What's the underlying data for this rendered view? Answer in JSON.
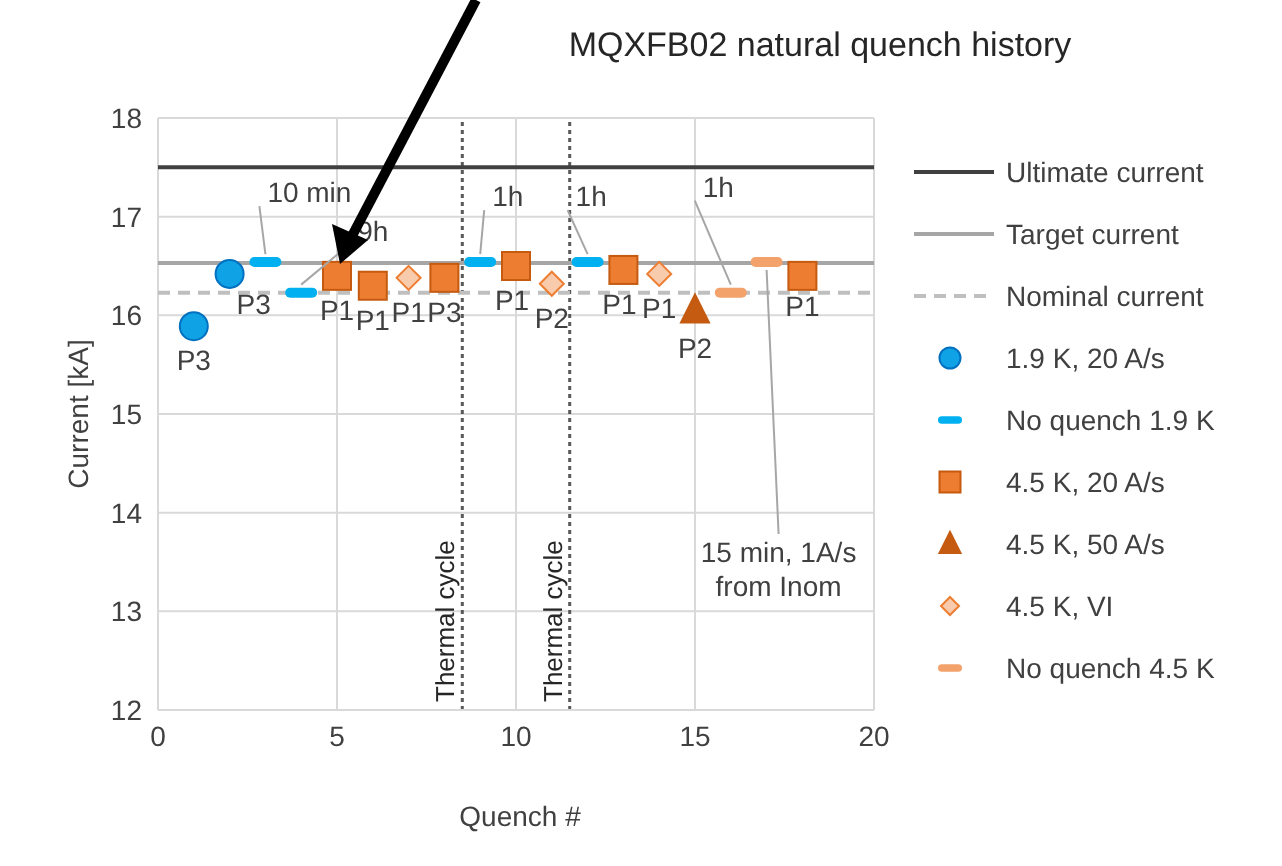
{
  "chart_data": {
    "type": "scatter",
    "title": "MQXFB02 natural quench history",
    "xlabel": "Quench #",
    "ylabel": "Current [kA]",
    "xlim": [
      0,
      20
    ],
    "xticks": [
      0,
      5,
      10,
      15,
      20
    ],
    "ylim": [
      12,
      18
    ],
    "yticks": [
      12,
      13,
      14,
      15,
      16,
      17,
      18
    ],
    "grid": true,
    "legend": "right",
    "series": [
      {
        "type": "line",
        "name": "Ultimate current",
        "color": "#404040",
        "x": [
          0,
          20
        ],
        "values": [
          17.5,
          17.5
        ],
        "line_style": "solid"
      },
      {
        "type": "line",
        "name": "Target current",
        "color": "#a6a6a6",
        "x": [
          0,
          20
        ],
        "values": [
          16.53,
          16.53
        ],
        "line_style": "solid"
      },
      {
        "type": "line",
        "name": "Nominal current",
        "color": "#bfbfbf",
        "x": [
          0,
          20
        ],
        "values": [
          16.23,
          16.23
        ],
        "line_style": "dashed"
      },
      {
        "name": "1.9 K, 20 A/s",
        "color": "#0fa3e6",
        "x": [
          1,
          2
        ],
        "values": [
          15.89,
          16.42
        ],
        "marker": "circle"
      },
      {
        "name": "No quench 1.9 K",
        "color": "#00b0f0",
        "x": [
          3,
          4,
          9,
          12
        ],
        "values": [
          16.54,
          16.23,
          16.54,
          16.54
        ]
      },
      {
        "name": "4.5 K, 20 A/s",
        "color": "#ed7d31",
        "x": [
          5,
          6,
          8,
          10,
          13,
          18
        ],
        "values": [
          16.4,
          16.3,
          16.38,
          16.5,
          16.46,
          16.4
        ],
        "marker": "square"
      },
      {
        "name": "4.5 K, 50 A/s",
        "color": "#c55a11",
        "x": [
          15
        ],
        "values": [
          16.05
        ],
        "marker": "triangle"
      },
      {
        "name": "4.5 K, VI",
        "color": "#f8cbad",
        "x": [
          7,
          11,
          14
        ],
        "values": [
          16.38,
          16.32,
          16.42
        ],
        "marker": "diamond"
      },
      {
        "name": "No quench 4.5 K",
        "color": "#f4a26b",
        "x": [
          16,
          17
        ],
        "values": [
          16.23,
          16.54
        ]
      }
    ],
    "ref_lines": [
      {
        "axis": "x",
        "value": 8.5,
        "label": "Thermal cycle",
        "color": "#595959",
        "line_style": "dotted"
      },
      {
        "axis": "x",
        "value": 11.5,
        "label": "Thermal cycle",
        "color": "#595959",
        "line_style": "dotted"
      }
    ],
    "annotations": [
      {
        "text": "P3",
        "x": 1,
        "y": 15.89
      },
      {
        "text": "P3",
        "x": 2,
        "y": 16.42
      },
      {
        "text": "P1",
        "x": 5,
        "y": 16.4
      },
      {
        "text": "P1",
        "x": 6,
        "y": 16.3
      },
      {
        "text": "P1",
        "x": 7,
        "y": 16.38
      },
      {
        "text": "P3",
        "x": 8,
        "y": 16.38
      },
      {
        "text": "P1",
        "x": 10,
        "y": 16.5
      },
      {
        "text": "P2",
        "x": 11,
        "y": 16.32
      },
      {
        "text": "P1",
        "x": 13,
        "y": 16.46
      },
      {
        "text": "P1",
        "x": 14,
        "y": 16.42
      },
      {
        "text": "P2",
        "x": 15,
        "y": 16.05
      },
      {
        "text": "P1",
        "x": 18,
        "y": 16.4
      },
      {
        "text": "10 min",
        "x": 3,
        "y": 16.54
      },
      {
        "text": "9h",
        "x": 4,
        "y": 16.23
      },
      {
        "text": "1h",
        "x": 9,
        "y": 16.54
      },
      {
        "text": "1h",
        "x": 12,
        "y": 16.54
      },
      {
        "text": "1h",
        "x": 16,
        "y": 16.23
      },
      {
        "text": "15 min, 1A/s from Inom",
        "x": 17,
        "y": 16.54
      }
    ]
  }
}
